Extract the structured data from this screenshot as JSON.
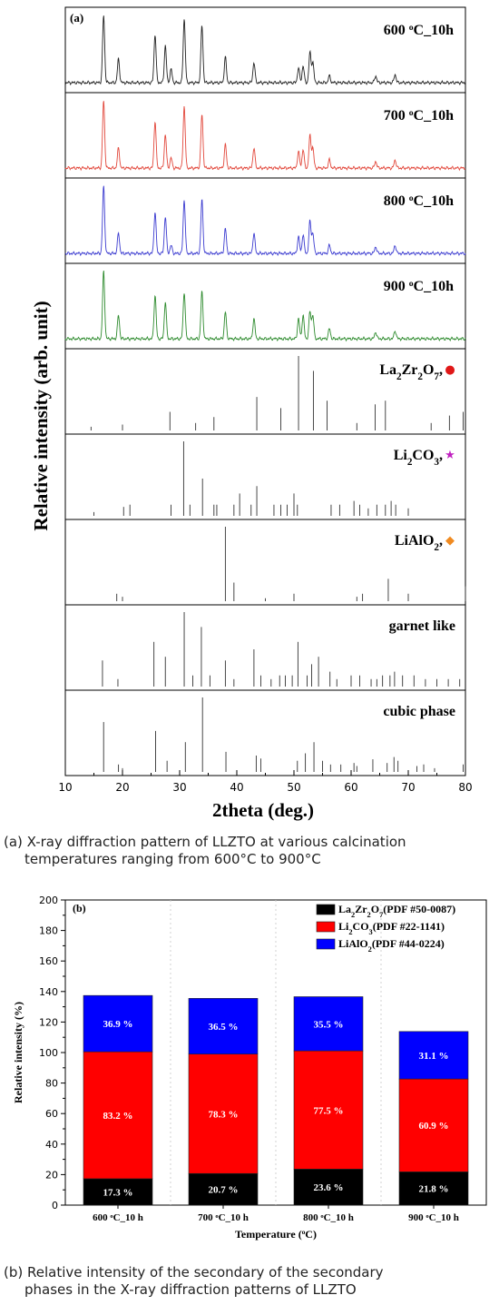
{
  "figure_a": {
    "panel_letter": "(a)",
    "ylabel": "Relative intensity (arb. unit)",
    "xlabel": "2theta (deg.)",
    "caption_line1": "(a) X-ray diffraction pattern of LLZTO at various calcination",
    "caption_line2": "temperatures ranging from 600°C to 900°C"
  },
  "figure_b": {
    "panel_letter": "(b)",
    "caption_line1": "(b) Relative intensity of the secondary of the secondary",
    "caption_line2": "phases in the X-ray diffraction patterns of LLZTO"
  },
  "chart_data": [
    {
      "type": "line",
      "title": "",
      "xlabel": "2theta (deg.)",
      "ylabel": "Relative intensity (arb. unit)",
      "xlim": [
        10,
        80
      ],
      "xticks": [
        10,
        20,
        30,
        40,
        50,
        60,
        70,
        80
      ],
      "series": [
        {
          "name": "600 °C_10h",
          "color": "#222222",
          "peaks": [
            [
              16.7,
              1.0
            ],
            [
              19.3,
              0.35
            ],
            [
              25.7,
              0.72
            ],
            [
              27.5,
              0.55
            ],
            [
              28.5,
              0.2
            ],
            [
              30.8,
              0.95
            ],
            [
              33.9,
              0.85
            ],
            [
              38.0,
              0.38
            ],
            [
              43.0,
              0.3
            ],
            [
              50.8,
              0.22
            ],
            [
              51.6,
              0.25
            ],
            [
              52.8,
              0.45
            ],
            [
              53.3,
              0.3
            ],
            [
              56.2,
              0.1
            ],
            [
              64.3,
              0.1
            ],
            [
              67.7,
              0.12
            ]
          ]
        },
        {
          "name": "700 °C_10h",
          "color": "#e2483c",
          "peaks": [
            [
              16.7,
              1.0
            ],
            [
              19.3,
              0.3
            ],
            [
              25.7,
              0.7
            ],
            [
              27.5,
              0.5
            ],
            [
              28.5,
              0.15
            ],
            [
              30.8,
              0.92
            ],
            [
              33.9,
              0.8
            ],
            [
              38.0,
              0.35
            ],
            [
              43.0,
              0.3
            ],
            [
              50.8,
              0.25
            ],
            [
              51.6,
              0.28
            ],
            [
              52.8,
              0.48
            ],
            [
              53.3,
              0.3
            ],
            [
              56.2,
              0.12
            ],
            [
              64.3,
              0.1
            ],
            [
              67.7,
              0.12
            ]
          ]
        },
        {
          "name": "800 °C_10h",
          "color": "#3c3cd0",
          "peaks": [
            [
              16.7,
              1.0
            ],
            [
              19.3,
              0.3
            ],
            [
              25.7,
              0.62
            ],
            [
              27.5,
              0.55
            ],
            [
              28.5,
              0.12
            ],
            [
              30.8,
              0.8
            ],
            [
              33.9,
              0.8
            ],
            [
              38.0,
              0.37
            ],
            [
              43.0,
              0.3
            ],
            [
              50.8,
              0.25
            ],
            [
              51.6,
              0.28
            ],
            [
              52.8,
              0.48
            ],
            [
              53.3,
              0.3
            ],
            [
              56.2,
              0.12
            ],
            [
              64.3,
              0.1
            ],
            [
              67.7,
              0.12
            ]
          ]
        },
        {
          "name": "900 °C_10h",
          "color": "#2e8b2e",
          "peaks": [
            [
              16.7,
              1.0
            ],
            [
              19.3,
              0.35
            ],
            [
              25.7,
              0.65
            ],
            [
              27.5,
              0.55
            ],
            [
              30.8,
              0.7
            ],
            [
              33.9,
              0.7
            ],
            [
              38.0,
              0.4
            ],
            [
              43.0,
              0.3
            ],
            [
              50.8,
              0.3
            ],
            [
              51.6,
              0.35
            ],
            [
              52.8,
              0.4
            ],
            [
              53.3,
              0.35
            ],
            [
              56.2,
              0.15
            ],
            [
              64.3,
              0.1
            ],
            [
              67.7,
              0.12
            ]
          ]
        }
      ],
      "references": [
        {
          "name": "La2Zr2O7",
          "marker": "●",
          "marker_color": "#e01818",
          "lines": [
            [
              14.5,
              0.05
            ],
            [
              20.0,
              0.08
            ],
            [
              28.3,
              0.25
            ],
            [
              32.8,
              0.1
            ],
            [
              36.0,
              0.18
            ],
            [
              43.5,
              0.45
            ],
            [
              47.7,
              0.3
            ],
            [
              50.8,
              1.0
            ],
            [
              53.4,
              0.8
            ],
            [
              55.8,
              0.4
            ],
            [
              61.0,
              0.1
            ],
            [
              64.2,
              0.35
            ],
            [
              66.0,
              0.4
            ],
            [
              74.0,
              0.1
            ],
            [
              77.2,
              0.2
            ],
            [
              79.6,
              0.25
            ]
          ]
        },
        {
          "name": "Li2CO3",
          "marker": "★",
          "marker_color": "#c020c0",
          "lines": [
            [
              15.0,
              0.05
            ],
            [
              20.2,
              0.12
            ],
            [
              21.3,
              0.15
            ],
            [
              28.5,
              0.15
            ],
            [
              30.7,
              1.0
            ],
            [
              31.8,
              0.15
            ],
            [
              34.0,
              0.5
            ],
            [
              36.0,
              0.15
            ],
            [
              36.5,
              0.15
            ],
            [
              39.5,
              0.15
            ],
            [
              40.5,
              0.3
            ],
            [
              42.5,
              0.15
            ],
            [
              43.5,
              0.4
            ],
            [
              46.5,
              0.15
            ],
            [
              47.7,
              0.15
            ],
            [
              48.8,
              0.15
            ],
            [
              50.0,
              0.3
            ],
            [
              50.6,
              0.15
            ],
            [
              56.5,
              0.15
            ],
            [
              58.0,
              0.15
            ],
            [
              60.5,
              0.2
            ],
            [
              61.5,
              0.15
            ],
            [
              63.0,
              0.1
            ],
            [
              64.5,
              0.15
            ],
            [
              66.0,
              0.15
            ],
            [
              67.0,
              0.2
            ],
            [
              67.8,
              0.15
            ],
            [
              70.0,
              0.1
            ]
          ]
        },
        {
          "name": "LiAlO2",
          "marker": "◆",
          "marker_color": "#f08a20",
          "lines": [
            [
              19.0,
              0.1
            ],
            [
              20.0,
              0.06
            ],
            [
              38.0,
              1.0
            ],
            [
              39.5,
              0.25
            ],
            [
              45.0,
              0.04
            ],
            [
              50.0,
              0.1
            ],
            [
              61.0,
              0.06
            ],
            [
              62.0,
              0.1
            ],
            [
              66.5,
              0.3
            ],
            [
              70.0,
              0.1
            ],
            [
              80.0,
              0.2
            ]
          ]
        },
        {
          "name": "garnet like",
          "marker": "",
          "marker_color": "#222222",
          "lines": [
            [
              16.5,
              0.35
            ],
            [
              19.2,
              0.1
            ],
            [
              25.5,
              0.6
            ],
            [
              27.5,
              0.4
            ],
            [
              30.8,
              1.0
            ],
            [
              32.3,
              0.15
            ],
            [
              33.8,
              0.8
            ],
            [
              35.3,
              0.15
            ],
            [
              38.0,
              0.35
            ],
            [
              39.5,
              0.1
            ],
            [
              43.0,
              0.5
            ],
            [
              44.2,
              0.15
            ],
            [
              46.0,
              0.1
            ],
            [
              47.5,
              0.15
            ],
            [
              48.5,
              0.15
            ],
            [
              49.7,
              0.15
            ],
            [
              50.7,
              0.6
            ],
            [
              52.3,
              0.15
            ],
            [
              53.1,
              0.3
            ],
            [
              54.3,
              0.4
            ],
            [
              56.3,
              0.2
            ],
            [
              57.5,
              0.1
            ],
            [
              60.0,
              0.15
            ],
            [
              61.5,
              0.15
            ],
            [
              63.5,
              0.1
            ],
            [
              64.5,
              0.1
            ],
            [
              65.5,
              0.15
            ],
            [
              66.8,
              0.15
            ],
            [
              67.6,
              0.2
            ],
            [
              69.0,
              0.15
            ],
            [
              71.0,
              0.15
            ],
            [
              73.0,
              0.1
            ],
            [
              75.0,
              0.1
            ],
            [
              77.0,
              0.1
            ],
            [
              79.0,
              0.1
            ]
          ]
        },
        {
          "name": "cubic phase",
          "marker": "",
          "marker_color": "#222222",
          "lines": [
            [
              16.7,
              0.67
            ],
            [
              19.3,
              0.1
            ],
            [
              20.0,
              0.05
            ],
            [
              25.8,
              0.55
            ],
            [
              27.8,
              0.15
            ],
            [
              31.0,
              0.4
            ],
            [
              34.0,
              1.0
            ],
            [
              38.1,
              0.27
            ],
            [
              43.4,
              0.22
            ],
            [
              44.2,
              0.18
            ],
            [
              50.6,
              0.15
            ],
            [
              52.0,
              0.25
            ],
            [
              53.5,
              0.4
            ],
            [
              55.0,
              0.15
            ],
            [
              56.4,
              0.1
            ],
            [
              58.2,
              0.1
            ],
            [
              60.5,
              0.12
            ],
            [
              61.0,
              0.08
            ],
            [
              63.8,
              0.17
            ],
            [
              66.3,
              0.12
            ],
            [
              67.5,
              0.2
            ],
            [
              68.2,
              0.15
            ],
            [
              71.5,
              0.08
            ],
            [
              72.7,
              0.1
            ],
            [
              74.6,
              0.05
            ],
            [
              79.6,
              0.1
            ]
          ]
        }
      ]
    },
    {
      "type": "bar",
      "stacked": true,
      "title": "",
      "xlabel": "Temperature (°C)",
      "ylabel": "Relative intensity (%)",
      "ylim": [
        0,
        200
      ],
      "yticks": [
        0,
        20,
        40,
        60,
        80,
        100,
        120,
        140,
        160,
        180,
        200
      ],
      "categories": [
        "600 °C_10 h",
        "700 °C_10 h",
        "800 °C_10 h",
        "900 °C_10 h"
      ],
      "legend_position": "top-right",
      "series": [
        {
          "name": "La2Zr2O7(PDF #50-0087)",
          "color": "#000000",
          "label_color": "#ffffff",
          "values": [
            17.3,
            20.7,
            23.6,
            21.8
          ],
          "labels": [
            "17.3 %",
            "20.7 %",
            "23.6 %",
            "21.8 %"
          ]
        },
        {
          "name": "Li2CO3(PDF #22-1141)",
          "color": "#ff0000",
          "label_color": "#ffffff",
          "values": [
            83.2,
            78.3,
            77.5,
            60.9
          ],
          "labels": [
            "83.2 %",
            "78.3 %",
            "77.5 %",
            "60.9 %"
          ]
        },
        {
          "name": "LiAlO2(PDF #44-0224)",
          "color": "#0000ff",
          "label_color": "#ffffff",
          "values": [
            36.9,
            36.5,
            35.5,
            31.1
          ],
          "labels": [
            "36.9 %",
            "36.5 %",
            "35.5 %",
            "31.1 %"
          ]
        }
      ]
    }
  ]
}
